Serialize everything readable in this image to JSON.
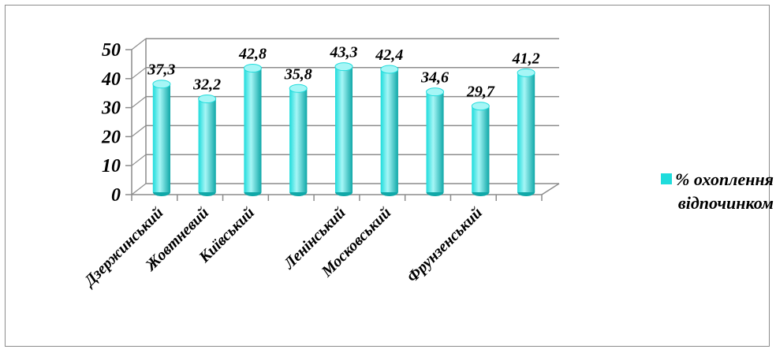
{
  "colors": {
    "bar_main": "#1fdcdc",
    "bar_light": "#a6f6f6",
    "bar_dark": "#10a8a8",
    "axis": "#8c8c8c",
    "grid": "#8c8c8c"
  },
  "chart_data": {
    "type": "bar",
    "style": "3d-cylinder",
    "categories": [
      "Дзержинський",
      "Жовтневий",
      "Київський",
      "",
      "Ленінський",
      "Московський",
      "",
      "Фрунзенський",
      ""
    ],
    "values": [
      37.3,
      32.2,
      42.8,
      35.8,
      43.3,
      42.4,
      34.6,
      29.7,
      41.2
    ],
    "value_labels": [
      "37,3",
      "32,2",
      "42,8",
      "35,8",
      "43,3",
      "42,4",
      "34,6",
      "29,7",
      "41,2"
    ],
    "series": [
      {
        "name": "% охоплення відпочинком",
        "values": [
          37.3,
          32.2,
          42.8,
          35.8,
          43.3,
          42.4,
          34.6,
          29.7,
          41.2
        ]
      }
    ],
    "ylim": [
      0,
      50
    ],
    "yticks": [
      "0",
      "10",
      "20",
      "30",
      "40",
      "50"
    ],
    "grid": true,
    "legend_position": "right",
    "legend": {
      "line1": "% охоплення",
      "line2": "відпочинком"
    }
  }
}
